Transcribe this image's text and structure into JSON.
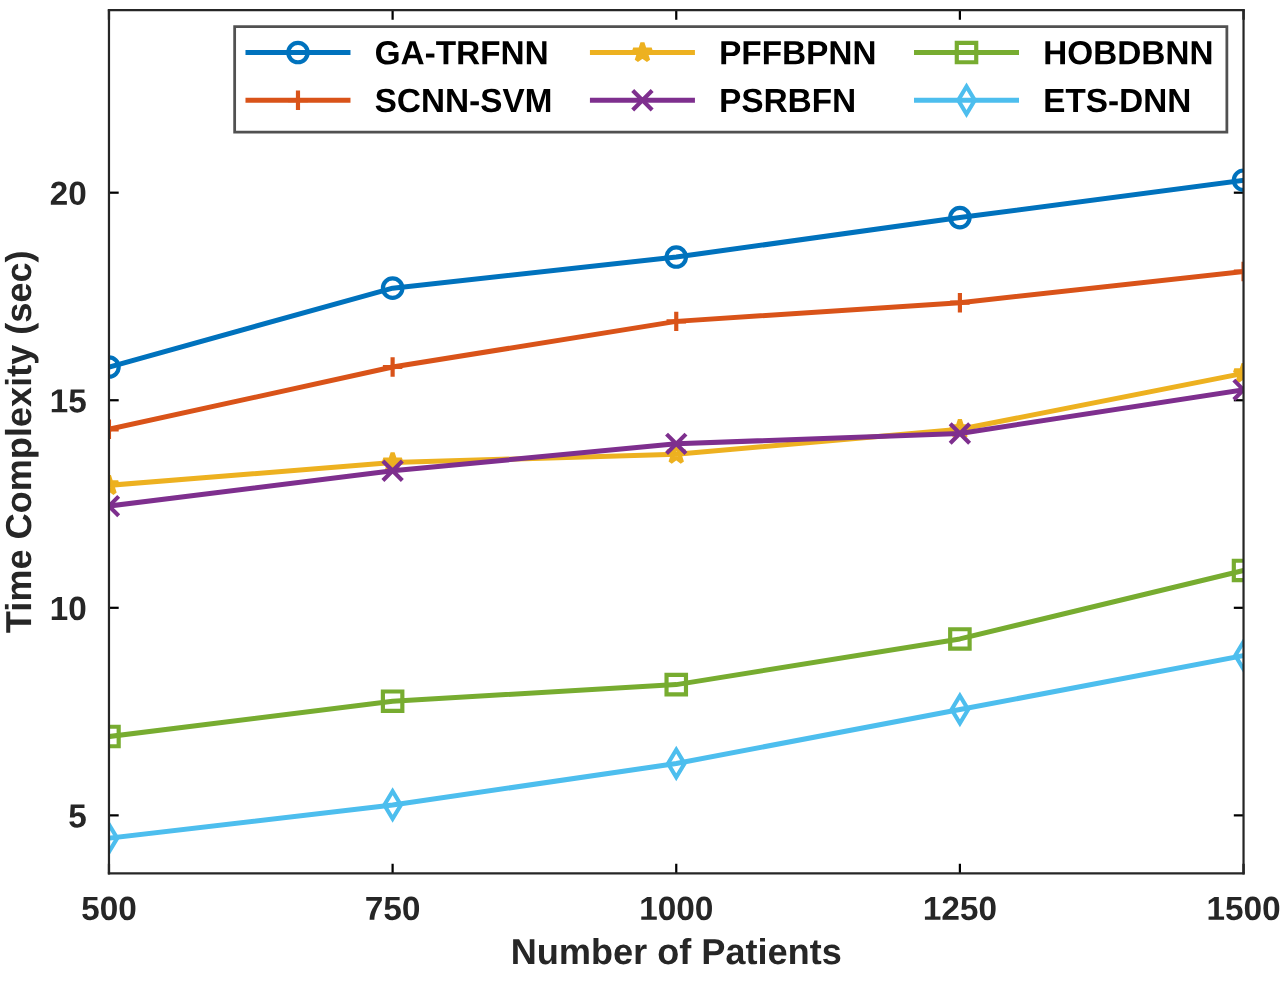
{
  "chart_data": {
    "type": "line",
    "xlabel": "Number of Patients",
    "ylabel": "Time Complexity (sec)",
    "x": [
      500,
      750,
      1000,
      1250,
      1500
    ],
    "xlim": [
      500,
      1500
    ],
    "xticks": [
      500,
      750,
      1000,
      1250,
      1500
    ],
    "ylim": [
      3.6,
      24.4
    ],
    "yticks": [
      5,
      10,
      15,
      20
    ],
    "grid": false,
    "legend": "top right",
    "series": [
      {
        "name": "GA-TRFNN",
        "color": "#0072bd",
        "marker": "circle",
        "values": [
          15.8,
          17.7,
          18.45,
          19.4,
          20.3
        ]
      },
      {
        "name": "SCNN-SVM",
        "color": "#d95319",
        "marker": "plus",
        "values": [
          14.3,
          15.8,
          16.9,
          17.35,
          18.1
        ]
      },
      {
        "name": "PFFBPNN",
        "color": "#edb120",
        "marker": "star",
        "values": [
          12.95,
          13.5,
          13.7,
          14.3,
          15.65
        ]
      },
      {
        "name": "PSRBFN",
        "color": "#7e2f8e",
        "marker": "cross",
        "values": [
          12.45,
          13.3,
          13.95,
          14.2,
          15.25
        ]
      },
      {
        "name": "HOBDBNN",
        "color": "#77ac30",
        "marker": "square",
        "values": [
          6.9,
          7.75,
          8.15,
          9.25,
          10.9
        ]
      },
      {
        "name": "ETS-DNN",
        "color": "#4dbeee",
        "marker": "diamond",
        "values": [
          4.45,
          5.25,
          6.25,
          7.55,
          8.85
        ]
      }
    ]
  }
}
